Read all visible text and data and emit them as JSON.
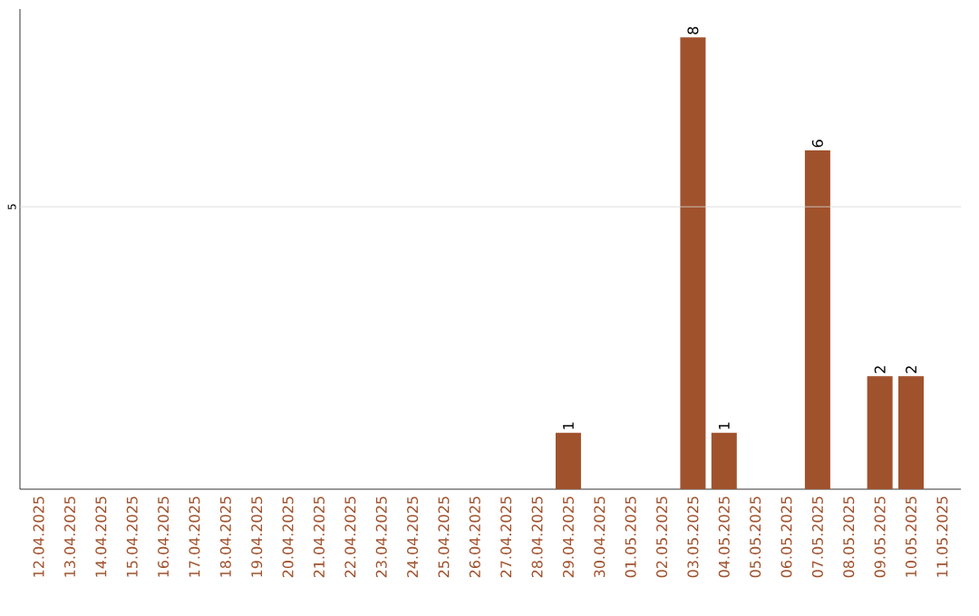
{
  "chart_data": {
    "type": "bar",
    "categories": [
      "12.04.2025",
      "13.04.2025",
      "14.04.2025",
      "15.04.2025",
      "16.04.2025",
      "17.04.2025",
      "18.04.2025",
      "19.04.2025",
      "20.04.2025",
      "21.04.2025",
      "22.04.2025",
      "23.04.2025",
      "24.04.2025",
      "25.04.2025",
      "26.04.2025",
      "27.04.2025",
      "28.04.2025",
      "29.04.2025",
      "30.04.2025",
      "01.05.2025",
      "02.05.2025",
      "03.05.2025",
      "04.05.2025",
      "05.05.2025",
      "06.05.2025",
      "07.05.2025",
      "08.05.2025",
      "09.05.2025",
      "10.05.2025",
      "11.05.2025"
    ],
    "values": [
      null,
      null,
      null,
      null,
      null,
      null,
      null,
      null,
      null,
      null,
      null,
      null,
      null,
      null,
      null,
      null,
      null,
      1,
      null,
      null,
      null,
      8,
      1,
      null,
      null,
      6,
      null,
      2,
      2,
      null
    ],
    "color": "#a0522d",
    "ylim": [
      0,
      8.5
    ],
    "data_labels": true,
    "ref_lines": [
      {
        "axis": "y",
        "value": 5,
        "label": "5",
        "color": "#d3d3d3"
      }
    ]
  }
}
